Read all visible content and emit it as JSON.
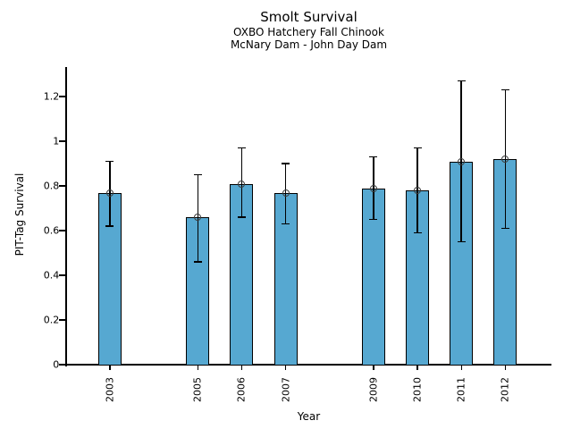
{
  "chart_data": {
    "type": "bar",
    "title": "Smolt Survival",
    "subtitle_line1": "OXBO Hatchery Fall Chinook",
    "subtitle_line2": "McNary Dam - John Day Dam",
    "xlabel": "Year",
    "ylabel": "PIT-Tag Survival",
    "categories": [
      "2003",
      "2005",
      "2006",
      "2007",
      "2009",
      "2010",
      "2011",
      "2012"
    ],
    "values": [
      0.77,
      0.66,
      0.81,
      0.77,
      0.79,
      0.78,
      0.91,
      0.92
    ],
    "error_low": [
      0.62,
      0.46,
      0.66,
      0.63,
      0.65,
      0.59,
      0.55,
      0.61
    ],
    "error_high": [
      0.91,
      0.85,
      0.97,
      0.9,
      0.93,
      0.97,
      1.27,
      1.23
    ],
    "xlim": [
      2002,
      2013.05
    ],
    "ylim": [
      0,
      1.332
    ],
    "yticks": [
      0,
      0.2,
      0.4,
      0.6,
      0.8,
      1,
      1.2
    ],
    "ytick_labels": [
      "0",
      "0.2",
      "0.4",
      "0.6",
      "0.8",
      "1",
      "1.2"
    ],
    "xtick_rotation_deg": 90,
    "bar_color": "#56A8D1",
    "bar_edge_color": "#000000",
    "error_bar_color": "#000000",
    "marker": "open-circle",
    "marker_edge_color": "#3d3d3d",
    "grid": false,
    "legend": null
  }
}
